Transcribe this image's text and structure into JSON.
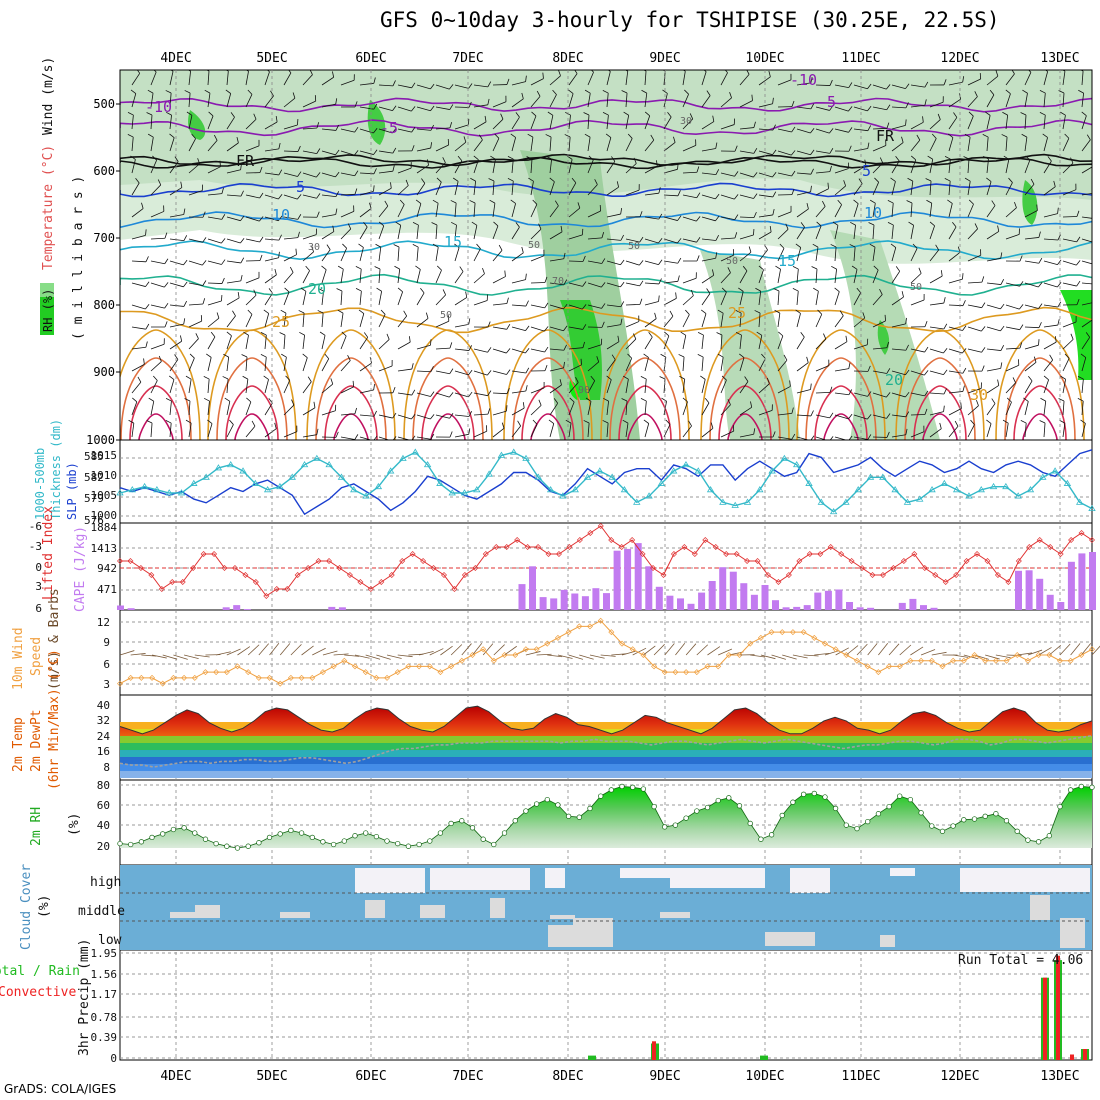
{
  "header": {
    "title": "GFS 0~10day 3-hourly for TSHIPISE (30.25E, 22.5S)",
    "credit": "GrADS: COLA/IGES"
  },
  "colors": {
    "temp_warm": "#e05a00",
    "dewpt_band_green": "#33cc33",
    "rh_green": "#22cc22",
    "cloud_blue": "#6baed6",
    "cloud_clear": "#f3f2f7",
    "cape_bar": "#c27bf0",
    "lifted_line": "#e03030",
    "slp_line": "#1a3fcf",
    "thickness_line": "#33b9c9",
    "wind_speed_line": "#f0a040",
    "precip_total": "#22bb22",
    "precip_conv": "#ee2222"
  },
  "x_axis": {
    "day_labels": [
      "4DEC",
      "5DEC",
      "6DEC",
      "7DEC",
      "8DEC",
      "9DEC",
      "10DEC",
      "11DEC",
      "12DEC",
      "13DEC"
    ]
  },
  "panels": {
    "upper": {
      "ylabel_rh": "RH (%)",
      "ylabel_temp": "Temperature (°C)",
      "ylabel_wind": "Wind (m/s)",
      "ylabel_units": "( m i l l i b a r s )",
      "yticks": [
        "500",
        "600",
        "700",
        "800",
        "900",
        "1000"
      ],
      "contour_labels": [
        "-10",
        "-5",
        "FR",
        "5",
        "10",
        "15",
        "20",
        "25",
        "-10",
        "-5",
        "FR",
        "5",
        "10",
        "15",
        "20",
        "25",
        "30",
        "50",
        "70",
        "90",
        "30",
        "50",
        "50",
        "50",
        "50",
        "30"
      ]
    },
    "slp": {
      "ylabel_a": "1000-500mb",
      "ylabel_b": "Thickness (dm)",
      "ylabel_c": "SLP (mb)",
      "left_ticks": [
        "585",
        "582",
        "579",
        "576"
      ],
      "right_ticks": [
        "1015",
        "1010",
        "1005",
        "1000"
      ]
    },
    "cape": {
      "ylabel_a": "Lifted Index",
      "ylabel_b": "CAPE (J/kg)",
      "left_ticks": [
        "-6",
        "-3",
        "0",
        "3",
        "6"
      ],
      "right_ticks": [
        "1884",
        "1413",
        "942",
        "471"
      ]
    },
    "wind10": {
      "ylabel_a": "10m Wind",
      "ylabel_b": "Speed",
      "ylabel_c": "(m/s) & Barbs",
      "ticks": [
        "12",
        "9",
        "6",
        "3"
      ]
    },
    "temp2m": {
      "ylabel_a": "2m Temp",
      "ylabel_b": "2m DewPt",
      "ylabel_c": "(6hr Min/Max) (°C)",
      "ticks": [
        "40",
        "32",
        "24",
        "16",
        "8"
      ]
    },
    "rh2m": {
      "ylabel_a": "2m RH",
      "ylabel_b": "(%)",
      "ticks": [
        "80",
        "60",
        "40",
        "20"
      ]
    },
    "cloud": {
      "ylabel_a": "Cloud Cover",
      "ylabel_b": "(%)",
      "levels": [
        "high",
        "middle",
        "low"
      ]
    },
    "precip": {
      "ylabel_a": "3hr Precip (mm)",
      "ylabel_b": "Total / Rain",
      "ylabel_c": "Convective",
      "ticks": [
        "1.95",
        "1.56",
        "1.17",
        "0.78",
        "0.39",
        "0"
      ],
      "run_total": "Run Total = 4.06"
    }
  },
  "chart_data": [
    {
      "type": "line",
      "title": "SLP (mb) and 1000-500mb Thickness (dm)",
      "series": [
        {
          "name": "SLP (mb)",
          "ylim": [
            999,
            1018
          ],
          "values": [
            1007,
            1006,
            1007,
            1006,
            1005,
            1006,
            1004,
            1003,
            1005,
            1007,
            1006,
            1008,
            1009,
            1007,
            1005,
            1000,
            1002,
            1004,
            1007,
            1008,
            1006,
            1004,
            1001,
            1003,
            1006,
            1010,
            1009,
            1007,
            1005,
            1004,
            1006,
            1008,
            1011,
            1011,
            1009,
            1006,
            1005,
            1008,
            1012,
            1010,
            1008,
            1011,
            1012,
            1012,
            1009,
            1013,
            1012,
            1010,
            1013,
            1013,
            1009,
            1012,
            1014,
            1012,
            1010,
            1011,
            1016,
            1015,
            1011,
            1012,
            1013,
            1015,
            1012,
            1010,
            1012,
            1014,
            1013,
            1011,
            1012,
            1014,
            1012,
            1011,
            1013,
            1014,
            1013,
            1011,
            1010,
            1013,
            1016,
            1017
          ]
        },
        {
          "name": "1000-500mb Thickness (dm)",
          "ylim": [
            575.5,
            587
          ],
          "values": [
            579.5,
            580,
            580.5,
            580,
            579.5,
            579.5,
            581,
            582,
            583.5,
            584,
            583,
            581,
            580,
            580.5,
            582,
            584,
            585,
            584,
            582,
            580,
            579,
            580.5,
            583,
            585,
            586,
            584,
            581,
            579.5,
            579.5,
            580,
            582.5,
            585.5,
            586,
            585,
            582,
            580,
            579,
            580,
            582,
            583,
            582,
            580,
            578,
            579,
            581,
            583,
            584,
            583,
            580,
            578,
            577.5,
            578,
            580,
            583,
            585,
            584,
            581,
            578,
            576.5,
            578,
            580,
            582,
            582,
            580,
            578,
            578.5,
            580,
            581,
            580,
            579,
            580,
            580.5,
            580.5,
            579,
            580,
            582,
            583,
            581,
            578,
            577
          ]
        }
      ]
    },
    {
      "type": "bar",
      "title": "CAPE (J/kg) and Lifted Index",
      "series": [
        {
          "name": "CAPE (J/kg)",
          "ylim": [
            0,
            1884
          ],
          "values": [
            100,
            40,
            0,
            0,
            0,
            0,
            0,
            0,
            0,
            0,
            60,
            110,
            20,
            0,
            0,
            0,
            0,
            0,
            0,
            0,
            70,
            60,
            0,
            0,
            0,
            0,
            0,
            0,
            0,
            0,
            0,
            0,
            0,
            0,
            0,
            0,
            0,
            0,
            580,
            980,
            290,
            260,
            450,
            370,
            310,
            490,
            380,
            1330,
            1370,
            1500,
            980,
            520,
            320,
            260,
            140,
            390,
            650,
            960,
            860,
            600,
            340,
            560,
            220,
            60,
            70,
            110,
            390,
            430,
            460,
            180,
            60,
            50,
            0,
            0,
            160,
            250,
            110,
            50,
            0,
            0,
            0,
            0,
            0,
            0,
            0,
            880,
            890,
            700,
            340,
            180,
            1080,
            1270,
            1300
          ]
        },
        {
          "name": "Lifted Index",
          "ylim": [
            6,
            -6
          ],
          "values": [
            -1,
            -1,
            0,
            1,
            3,
            2,
            2,
            0,
            -2,
            -2,
            0,
            0,
            1,
            2,
            4,
            3,
            3,
            1,
            0,
            -1,
            -1,
            0,
            1,
            2,
            3,
            2,
            1,
            -1,
            -2,
            -1,
            0,
            1,
            3,
            1,
            0,
            -2,
            -3,
            -3,
            -4,
            -3,
            -3,
            -2,
            -2,
            -3,
            -4,
            -5,
            -6,
            -4,
            -3,
            -4,
            -2,
            0,
            1,
            -2,
            -3,
            -2,
            -4,
            -3,
            -2,
            -2,
            -1,
            -1,
            1,
            2,
            1,
            -1,
            -2,
            -2,
            -3,
            -2,
            -1,
            0,
            1,
            1,
            0,
            -1,
            -2,
            0,
            1,
            2,
            1,
            -1,
            -2,
            -1,
            1,
            2,
            -1,
            -3,
            -4,
            -3,
            -2,
            -4,
            -5,
            -4
          ]
        }
      ]
    },
    {
      "type": "line",
      "title": "10m Wind Speed (m/s)",
      "ylim": [
        0,
        14
      ],
      "values": [
        2,
        3,
        3,
        3,
        2,
        3,
        3,
        3,
        4,
        4,
        4,
        5,
        4,
        3,
        3,
        2,
        3,
        3,
        3,
        4,
        5,
        6,
        5,
        4,
        3,
        3,
        4,
        5,
        5,
        5,
        4,
        5,
        6,
        7,
        8,
        6,
        7,
        7,
        8,
        8,
        9,
        10,
        11,
        12,
        12,
        13,
        11,
        9,
        8,
        7,
        5,
        4,
        4,
        4,
        4,
        5,
        5,
        7,
        7,
        9,
        10,
        11,
        11,
        11,
        11,
        10,
        9,
        8,
        7,
        6,
        5,
        4,
        5,
        5,
        6,
        6,
        6,
        5,
        6,
        6,
        7,
        6,
        6,
        6,
        7,
        6,
        7,
        7,
        6,
        6,
        7,
        8
      ]
    },
    {
      "type": "area",
      "title": "2m Temp / 2m DewPt (°C)",
      "ylim": [
        0,
        44
      ],
      "series": [
        {
          "name": "2m Temp",
          "values": [
            28,
            26,
            24,
            26,
            30,
            34,
            37,
            35,
            30,
            27,
            25,
            27,
            31,
            36,
            38,
            37,
            33,
            29,
            26,
            25,
            27,
            32,
            36,
            38,
            37,
            32,
            28,
            26,
            25,
            28,
            33,
            38,
            39,
            36,
            31,
            27,
            26,
            27,
            32,
            35,
            33,
            29,
            28,
            26,
            24,
            26,
            30,
            34,
            33,
            30,
            28,
            26,
            24,
            27,
            32,
            37,
            38,
            35,
            30,
            26,
            24,
            24,
            27,
            31,
            33,
            31,
            27,
            26,
            24,
            26,
            31,
            35,
            36,
            34,
            30,
            27,
            25,
            26,
            31,
            36,
            38,
            36,
            30,
            26,
            25,
            26,
            29,
            31
          ]
        },
        {
          "name": "2m DewPt",
          "values": [
            8,
            7,
            7,
            6,
            7,
            8,
            9,
            9,
            8,
            9,
            9,
            10,
            10,
            9,
            9,
            10,
            11,
            11,
            10,
            9,
            8,
            9,
            11,
            13,
            15,
            16,
            16,
            17,
            18,
            18,
            19,
            19,
            19,
            20,
            20,
            20,
            20,
            20,
            20,
            19,
            20,
            20,
            21,
            20,
            20,
            20,
            19,
            18,
            19,
            20,
            20,
            19,
            18,
            19,
            20,
            21,
            20,
            19,
            20,
            21,
            20,
            19,
            18,
            17,
            16,
            17,
            18,
            18,
            19,
            20,
            20,
            19,
            18,
            19,
            21,
            21,
            20,
            18,
            19,
            21,
            21,
            20,
            19,
            20,
            21,
            22,
            23
          ]
        }
      ]
    },
    {
      "type": "area",
      "title": "2m RH (%)",
      "ylim": [
        10,
        85
      ],
      "values": [
        15,
        14,
        17,
        22,
        26,
        31,
        33,
        27,
        20,
        15,
        12,
        10,
        12,
        16,
        22,
        26,
        30,
        27,
        22,
        17,
        14,
        18,
        24,
        27,
        23,
        18,
        15,
        12,
        14,
        18,
        27,
        38,
        41,
        33,
        20,
        14,
        27,
        41,
        52,
        60,
        65,
        59,
        46,
        45,
        55,
        69,
        76,
        80,
        79,
        77,
        57,
        34,
        36,
        44,
        52,
        56,
        64,
        67,
        58,
        38,
        20,
        25,
        47,
        62,
        71,
        72,
        68,
        55,
        36,
        32,
        40,
        49,
        57,
        69,
        65,
        50,
        35,
        29,
        35,
        42,
        43,
        46,
        49,
        41,
        29,
        19,
        17,
        24,
        57,
        76,
        80,
        79
      ]
    },
    {
      "type": "bar",
      "title": "3hr Precip (mm)",
      "ylim": [
        0,
        1.95
      ],
      "series": [
        {
          "name": "Total / Rain",
          "values": [
            {
              "x": "8DEC",
              "y": 0.08
            },
            {
              "x": "9DEC",
              "y": 0.3
            },
            {
              "x": "10DEC",
              "y": 0.08
            },
            {
              "x": "13DEC",
              "y": 1.5
            },
            {
              "x": "13DEC",
              "y": 1.82
            },
            {
              "x": "13DEC",
              "y": 0.2
            }
          ]
        },
        {
          "name": "Convective",
          "values": [
            {
              "x": "9DEC",
              "y": 0.34
            },
            {
              "x": "13DEC",
              "y": 1.5
            },
            {
              "x": "13DEC",
              "y": 1.9
            },
            {
              "x": "13DEC",
              "y": 0.1
            },
            {
              "x": "13DEC",
              "y": 0.2
            }
          ]
        }
      ]
    }
  ]
}
